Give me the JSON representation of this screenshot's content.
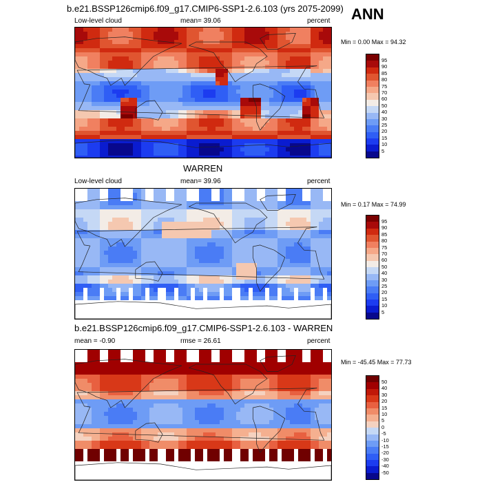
{
  "season": "ANN",
  "panels": [
    {
      "title": "b.e21.BSSP126cmip6.f09_g17.CMIP6-SSP1-2.6.103 (yrs 2075-2099)",
      "left_label": "Low-level cloud",
      "mid_label": "mean=  39.06",
      "right_label": "percent",
      "minmax": "Min =   0.00 Max =  94.32",
      "colorbar": [
        "95",
        "90",
        "85",
        "80",
        "75",
        "70",
        "60",
        "50",
        "40",
        "30",
        "25",
        "20",
        "15",
        "10",
        "5"
      ]
    },
    {
      "title": "WARREN",
      "left_label": "Low-level cloud",
      "mid_label": "mean=  39.96",
      "right_label": "percent",
      "minmax": "Min =   0.17 Max =  74.99",
      "colorbar": [
        "95",
        "90",
        "85",
        "80",
        "75",
        "70",
        "60",
        "50",
        "40",
        "30",
        "25",
        "20",
        "15",
        "10",
        "5"
      ]
    },
    {
      "title": "b.e21.BSSP126cmip6.f09_g17.CMIP6-SSP1-2.6.103 - WARREN",
      "left_label": "mean =  -0.90",
      "mid_label": "rmse =  26.61",
      "right_label": "percent",
      "minmax": "Min = -45.45 Max =  77.73",
      "colorbar": [
        "50",
        "40",
        "30",
        "20",
        "15",
        "10",
        "5",
        "0",
        "-5",
        "-10",
        "-15",
        "-20",
        "-30",
        "-40",
        "-50"
      ]
    }
  ],
  "chart_data": [
    {
      "type": "heatmap",
      "title": "b.e21.BSSP126cmip6.f09_g17.CMIP6-SSP1-2.6.103 (yrs 2075-2099)",
      "variable": "Low-level cloud",
      "units": "percent",
      "mean": 39.06,
      "min": 0.0,
      "max": 94.32,
      "levels": [
        5,
        10,
        15,
        20,
        25,
        30,
        40,
        50,
        60,
        70,
        75,
        80,
        85,
        90,
        95
      ]
    },
    {
      "type": "heatmap",
      "title": "WARREN",
      "variable": "Low-level cloud",
      "units": "percent",
      "mean": 39.96,
      "min": 0.17,
      "max": 74.99,
      "levels": [
        5,
        10,
        15,
        20,
        25,
        30,
        40,
        50,
        60,
        70,
        75,
        80,
        85,
        90,
        95
      ]
    },
    {
      "type": "heatmap",
      "title": "b.e21.BSSP126cmip6.f09_g17.CMIP6-SSP1-2.6.103 - WARREN",
      "units": "percent",
      "mean": -0.9,
      "rmse": 26.61,
      "min": -45.45,
      "max": 77.73,
      "levels": [
        -50,
        -40,
        -30,
        -20,
        -15,
        -10,
        -5,
        0,
        5,
        10,
        15,
        20,
        30,
        40,
        50
      ]
    }
  ],
  "colors": {
    "seq": [
      "#08088c",
      "#0a1cd0",
      "#1c3cf0",
      "#2f5ef5",
      "#4a7cf5",
      "#6e9cf5",
      "#98b8f5",
      "#c5d8f5",
      "#f3ece6",
      "#f5c8b0",
      "#f5a888",
      "#f08060",
      "#e05530",
      "#d02a10",
      "#a80a0a",
      "#7a0000"
    ],
    "diff": [
      "#08088c",
      "#0a1cd0",
      "#1c3cf0",
      "#2f5ef5",
      "#4a7cf5",
      "#6e9cf5",
      "#98b8f5",
      "#c5d8f5",
      "#f5d2c0",
      "#f5b090",
      "#f08c68",
      "#e86040",
      "#d83818",
      "#c01808",
      "#a00000",
      "#700000"
    ]
  }
}
